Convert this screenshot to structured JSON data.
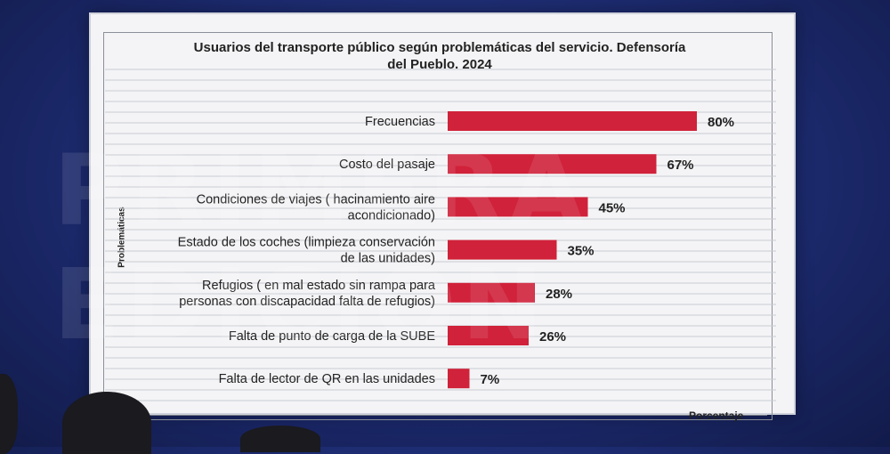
{
  "chart_data": {
    "type": "bar",
    "orientation": "horizontal",
    "title": "Usuarios del transporte público según problemáticas del servicio. Defensoría del Pueblo. 2024",
    "title_lines": [
      "Usuarios del transporte público según problemáticas del servicio. Defensoría",
      "del Pueblo. 2024"
    ],
    "ylabel": "Problemáticas",
    "xlabel": "Porcentaje",
    "xlim": [
      0,
      100
    ],
    "grid": true,
    "legend": "none",
    "bar_color": "#d0223a",
    "categories": [
      [
        "Frecuencias"
      ],
      [
        "Costo del pasaje"
      ],
      [
        "Condiciones de viajes ( hacinamiento  aire",
        "acondicionado)"
      ],
      [
        "Estado de los coches (limpieza  conservación",
        "de las unidades)"
      ],
      [
        "Refugios ( en mal estado  sin rampa para",
        "personas con discapacidad  falta de refugios)"
      ],
      [
        "Falta de punto de carga de la SUBE"
      ],
      [
        "Falta de lector de QR en las unidades"
      ]
    ],
    "values": [
      80,
      67,
      45,
      35,
      28,
      26,
      7
    ],
    "value_labels": [
      "80%",
      "67%",
      "45%",
      "35%",
      "28%",
      "26%",
      "7%"
    ]
  }
}
